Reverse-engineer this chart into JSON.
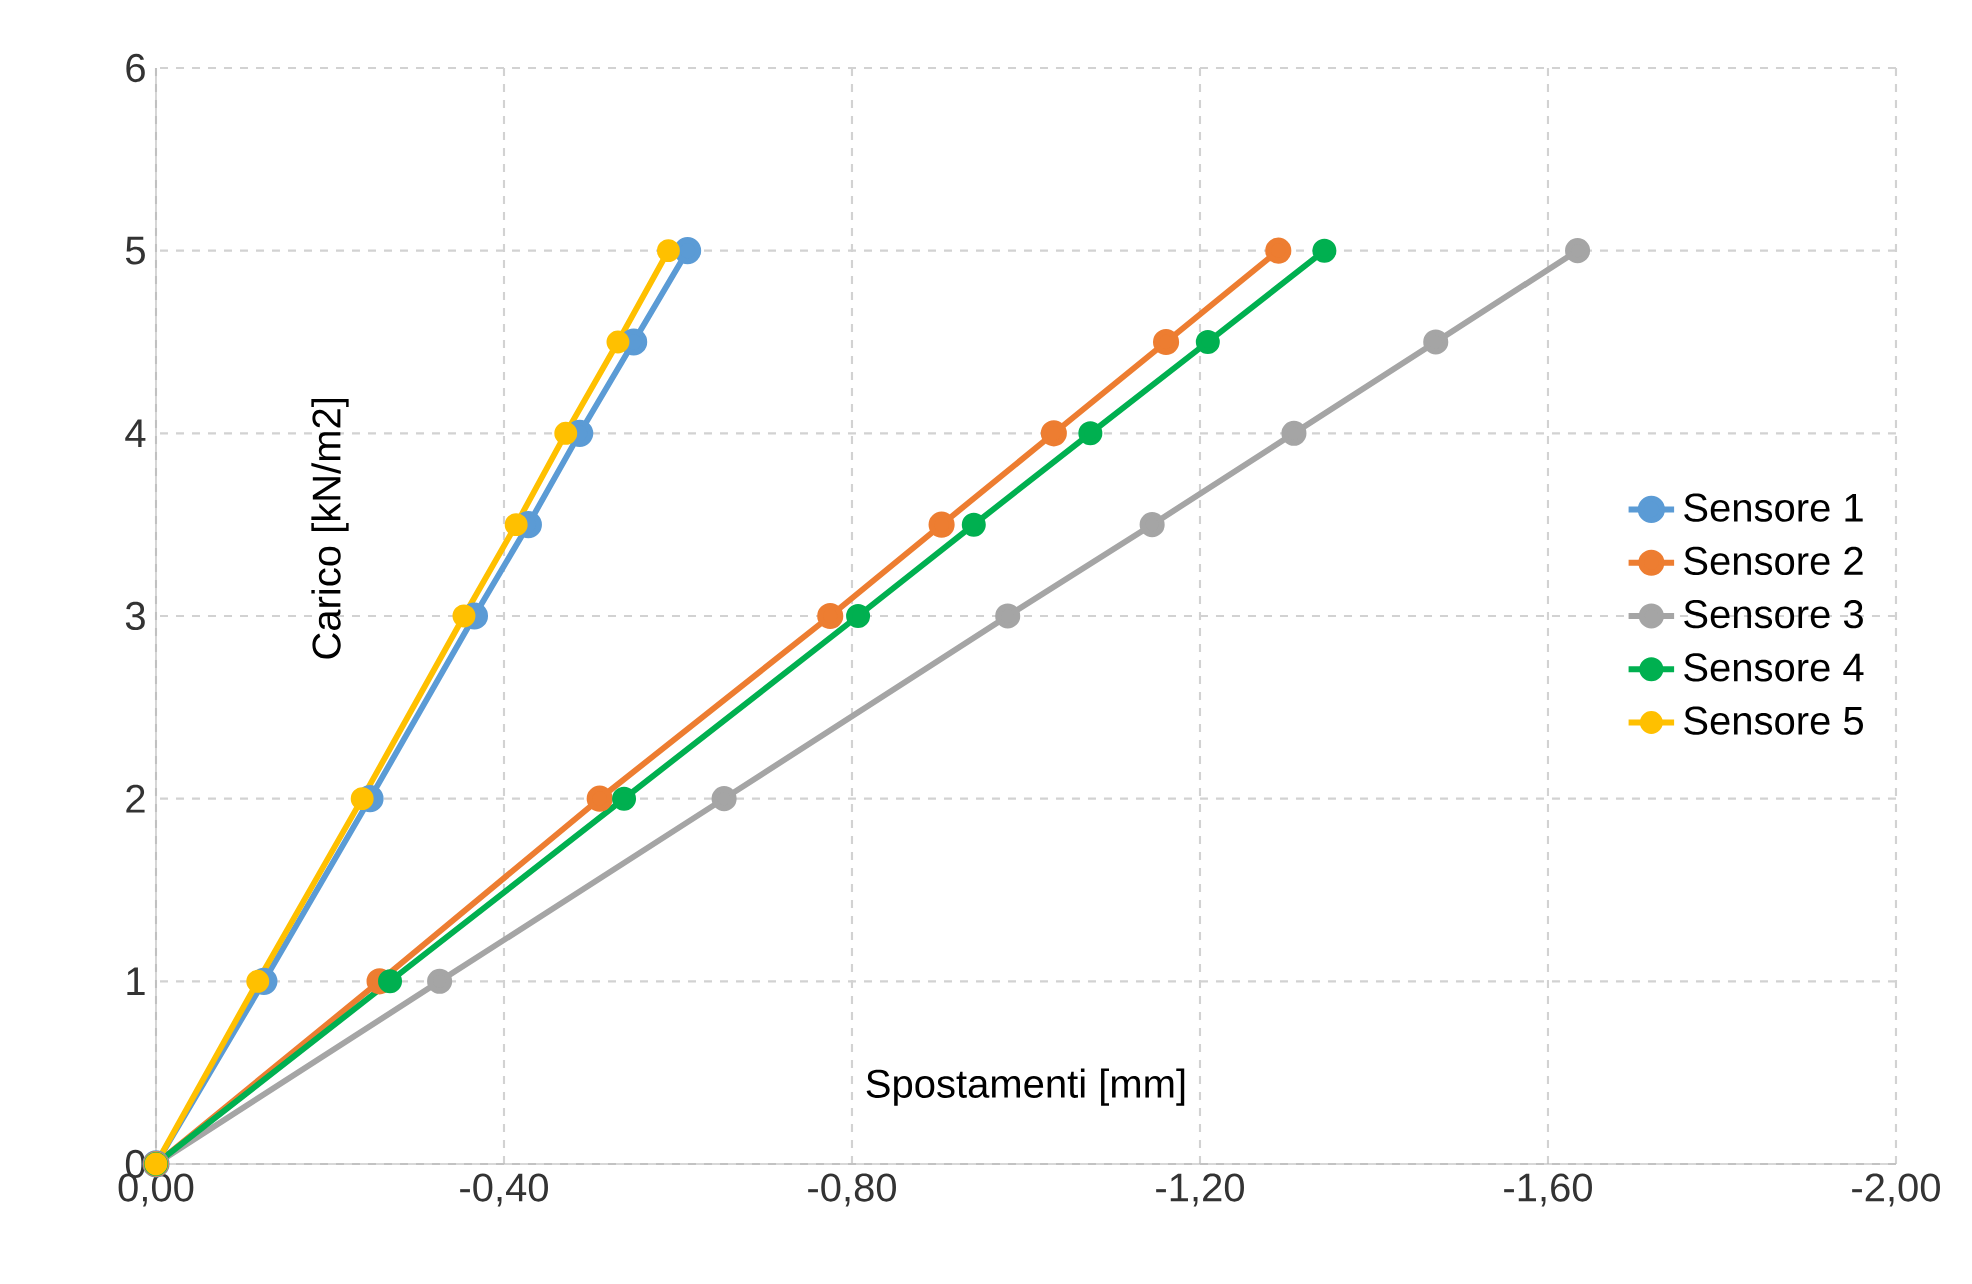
{
  "chart_data": {
    "type": "line",
    "xlabel": "Spostamenti [mm]",
    "ylabel": "Carico [kN/m2]",
    "xlim": [
      0,
      -2
    ],
    "ylim": [
      0,
      6
    ],
    "xticks": [
      {
        "value": 0,
        "label": "0,00"
      },
      {
        "value": -0.4,
        "label": "-0,40"
      },
      {
        "value": -0.8,
        "label": "-0,80"
      },
      {
        "value": -1.2,
        "label": "-1,20"
      },
      {
        "value": -1.6,
        "label": "-1,60"
      },
      {
        "value": -2,
        "label": "-2,00"
      }
    ],
    "yticks": [
      0,
      1,
      2,
      3,
      4,
      5,
      6
    ],
    "grid": true,
    "legend": "right",
    "marker": "circle",
    "line_style": "solid",
    "series": [
      {
        "name": "Sensore 1",
        "color": "#5b9bd5",
        "x": [
          0,
          -0.124,
          -0.246,
          -0.366,
          -0.428,
          -0.487,
          -0.549,
          -0.611
        ],
        "values": [
          0,
          1,
          2,
          3,
          3.5,
          4,
          4.5,
          5
        ]
      },
      {
        "name": "Sensore 2",
        "color": "#ed7d31",
        "x": [
          0,
          -0.257,
          -0.51,
          -0.775,
          -0.903,
          -1.032,
          -1.161,
          -1.29
        ],
        "values": [
          0,
          1,
          2,
          3,
          3.5,
          4,
          4.5,
          5
        ]
      },
      {
        "name": "Sensore 3",
        "color": "#a5a5a5",
        "x": [
          0,
          -0.326,
          -0.653,
          -0.979,
          -1.145,
          -1.308,
          -1.471,
          -1.634
        ],
        "values": [
          0,
          1,
          2,
          3,
          3.5,
          4,
          4.5,
          5
        ]
      },
      {
        "name": "Sensore 4",
        "color": "#00b050",
        "x": [
          0,
          -0.269,
          -0.538,
          -0.807,
          -0.94,
          -1.074,
          -1.209,
          -1.343
        ],
        "values": [
          0,
          1,
          2,
          3,
          3.5,
          4,
          4.5,
          5
        ]
      },
      {
        "name": "Sensore 5",
        "color": "#ffc000",
        "x": [
          0,
          -0.117,
          -0.237,
          -0.354,
          -0.414,
          -0.471,
          -0.531,
          -0.589
        ],
        "values": [
          0,
          1,
          2,
          3,
          3.5,
          4,
          4.5,
          5
        ]
      }
    ]
  }
}
